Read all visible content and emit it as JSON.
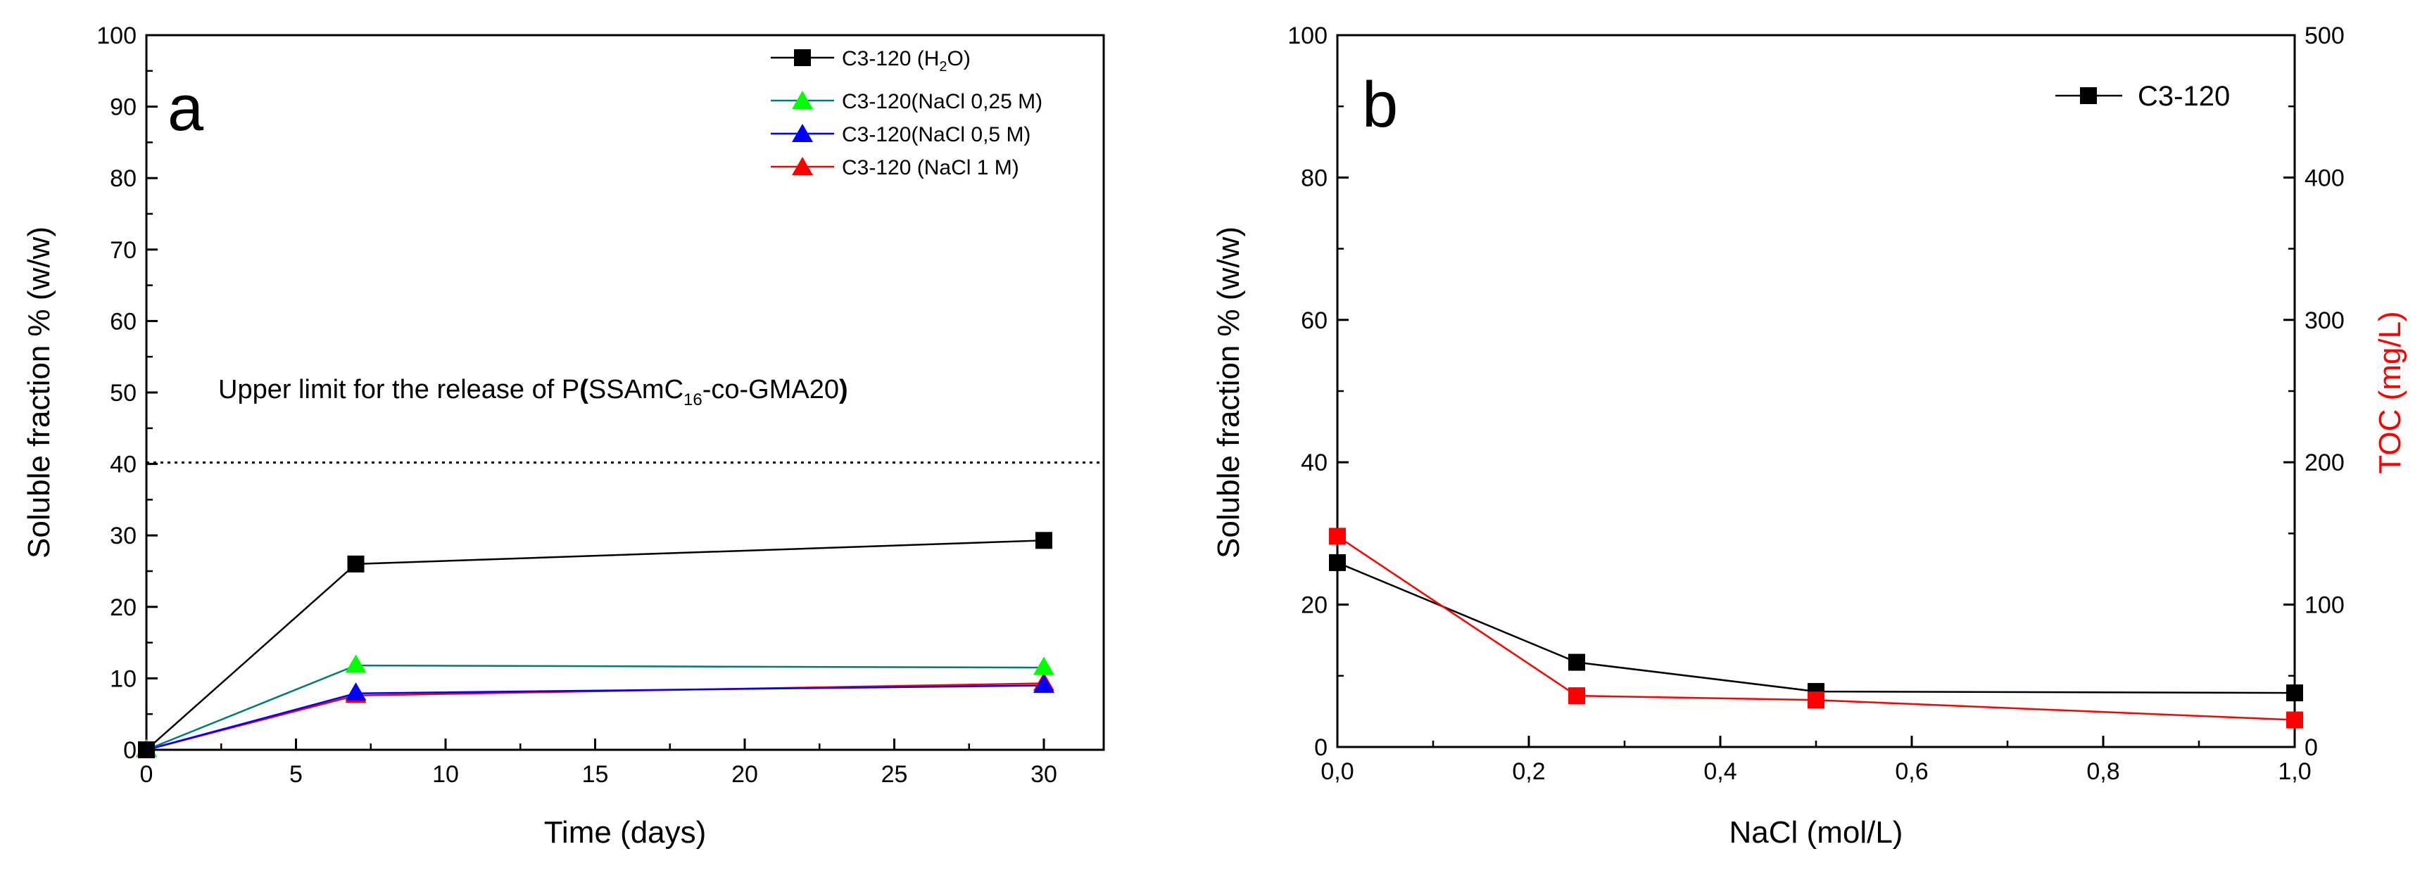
{
  "chart_data": [
    {
      "type": "line",
      "panel": "a",
      "xlabel": "Time (days)",
      "ylabel": "Soluble fraction % (w/w)",
      "xlim": [
        0,
        32
      ],
      "ylim": [
        0,
        100
      ],
      "xticks": [
        "0",
        "5",
        "10",
        "15",
        "20",
        "25",
        "30"
      ],
      "yticks": [
        "0",
        "10",
        "20",
        "30",
        "40",
        "50",
        "60",
        "70",
        "80",
        "90",
        "100"
      ],
      "x": [
        0,
        7,
        30
      ],
      "series": [
        {
          "name": "C3-120 (H₂O)",
          "legend_main": "C3-120 (H",
          "legend_sub": "2",
          "legend_end": "O)",
          "marker": "square",
          "color": "#000000",
          "marker_color": "#000000",
          "values": [
            0,
            26,
            29.3
          ]
        },
        {
          "name": "C3-120(NaCl 0,25 M)",
          "marker": "triangle",
          "color": "#007a7a",
          "marker_color": "#00ff00",
          "values": [
            0,
            11.8,
            11.5
          ]
        },
        {
          "name": "C3-120(NaCl 0,5 M)",
          "marker": "triangle",
          "color": "#0000ff",
          "marker_color": "#0000ff",
          "values": [
            0,
            7.9,
            9.0
          ]
        },
        {
          "name": "C3-120 (NaCl 1 M)",
          "marker": "triangle",
          "color": "#ff0000",
          "marker_color": "#ff0000",
          "values": [
            0,
            7.6,
            9.3
          ]
        }
      ],
      "reference_line": {
        "y": 40.2,
        "style": "dotted"
      },
      "annotation": {
        "main": "Upper limit for the release of P",
        "paren_open": "(",
        "sub_text": "SSAmC",
        "sub": "16",
        "rest": "-co-GMA20",
        "paren_close": ")"
      }
    },
    {
      "type": "line",
      "panel": "b",
      "xlabel": "NaCl (mol/L)",
      "ylabel": "Soluble fraction % (w/w)",
      "ylabel_right": "TOC (mg/L)",
      "xlim": [
        0,
        1
      ],
      "ylim": [
        0,
        100
      ],
      "ylim_right": [
        0,
        500
      ],
      "xticks": [
        "0,0",
        "0,2",
        "0,4",
        "0,6",
        "0,8",
        "1,0"
      ],
      "yticks": [
        "0",
        "20",
        "40",
        "60",
        "80",
        "100"
      ],
      "yticks_right": [
        "0",
        "100",
        "200",
        "300",
        "400",
        "500"
      ],
      "x": [
        0,
        0.25,
        0.5,
        1.0
      ],
      "series": [
        {
          "name": "C3-120",
          "axis": "left",
          "marker": "square",
          "color": "#000000",
          "values": [
            25.9,
            11.9,
            7.8,
            7.6
          ]
        },
        {
          "name": "TOC",
          "axis": "right",
          "marker": "square",
          "color": "#ff0000",
          "values": [
            148,
            36,
            33,
            19
          ]
        }
      ],
      "right_axis_color": "#ff0000"
    }
  ]
}
